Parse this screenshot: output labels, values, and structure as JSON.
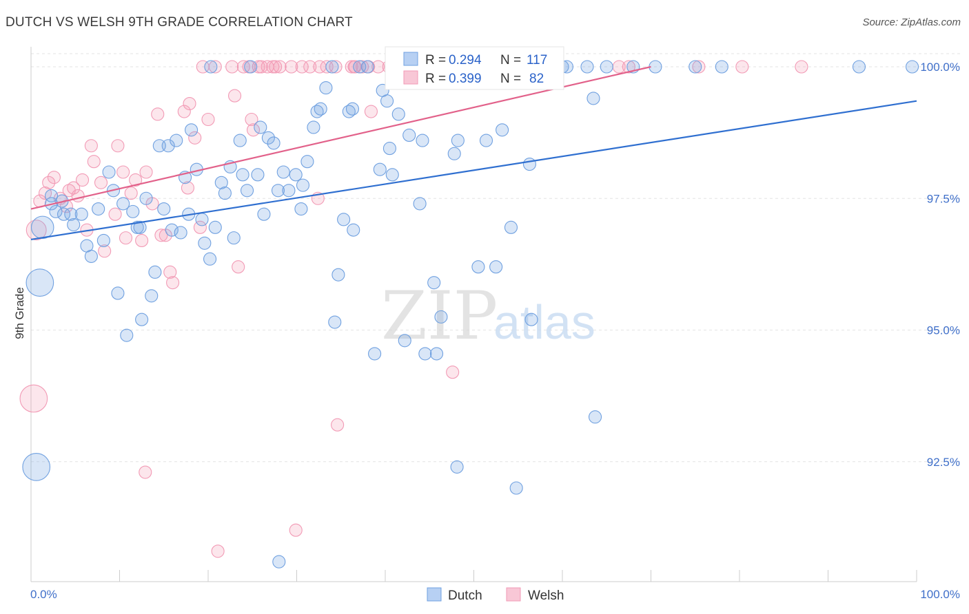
{
  "title": "DUTCH VS WELSH 9TH GRADE CORRELATION CHART",
  "source": "Source: ZipAtlas.com",
  "watermark": {
    "zip": "ZIP",
    "atlas": "atlas"
  },
  "legend": {
    "r_label": "R =",
    "n_label": "N =",
    "dutch": {
      "r": "0.294",
      "n": "117"
    },
    "welsh": {
      "r": "0.399",
      "n": "82"
    }
  },
  "chart_data": {
    "type": "scatter",
    "title": "DUTCH VS WELSH 9TH GRADE CORRELATION CHART",
    "xlabel": "",
    "ylabel": "9th Grade",
    "xlim": [
      0,
      100
    ],
    "ylim": [
      90.0,
      100.3
    ],
    "x_tick_labels": [
      "0.0%",
      "100.0%"
    ],
    "y_ticks": [
      {
        "value": 100.0,
        "label": "100.0%"
      },
      {
        "value": 97.5,
        "label": "97.5%"
      },
      {
        "value": 95.0,
        "label": "95.0%"
      },
      {
        "value": 92.5,
        "label": "92.5%"
      }
    ],
    "grid": true,
    "legend_position": "top-center",
    "colors": {
      "dutch": "#6fa0e0",
      "welsh": "#f29ab5",
      "dutch_line": "#2f6fd0",
      "welsh_line": "#e2618a"
    },
    "series": [
      {
        "name": "Dutch",
        "trend": {
          "x0": 0,
          "y0": 96.72,
          "x1": 100,
          "y1": 99.35
        },
        "points": [
          [
            1.3,
            96.95,
            1.8
          ],
          [
            1.0,
            95.9,
            2.2
          ],
          [
            0.6,
            92.4,
            2.2
          ],
          [
            2.3,
            97.4,
            1
          ],
          [
            2.3,
            97.55,
            1
          ],
          [
            2.8,
            97.25,
            1
          ],
          [
            3.5,
            97.45,
            1
          ],
          [
            3.7,
            97.2,
            1
          ],
          [
            4.5,
            97.2,
            1
          ],
          [
            4.8,
            97.0,
            1
          ],
          [
            5.7,
            97.2,
            1
          ],
          [
            6.3,
            96.6,
            1
          ],
          [
            6.8,
            96.4,
            1
          ],
          [
            7.6,
            97.3,
            1
          ],
          [
            8.2,
            96.7,
            1
          ],
          [
            8.8,
            98.0,
            1
          ],
          [
            9.3,
            97.65,
            1
          ],
          [
            9.8,
            95.7,
            1
          ],
          [
            10.4,
            97.4,
            1
          ],
          [
            10.8,
            94.9,
            1
          ],
          [
            11.5,
            97.25,
            1
          ],
          [
            12.0,
            96.95,
            1
          ],
          [
            12.3,
            96.95,
            1
          ],
          [
            12.5,
            95.2,
            1
          ],
          [
            13.0,
            97.5,
            1
          ],
          [
            13.6,
            95.65,
            1
          ],
          [
            14.0,
            96.1,
            1
          ],
          [
            14.5,
            98.5,
            1
          ],
          [
            15.0,
            97.3,
            1
          ],
          [
            15.5,
            98.5,
            1
          ],
          [
            15.9,
            96.9,
            1
          ],
          [
            16.4,
            98.6,
            1
          ],
          [
            16.9,
            96.85,
            1
          ],
          [
            17.4,
            97.9,
            1
          ],
          [
            17.8,
            97.2,
            1
          ],
          [
            18.1,
            98.8,
            1
          ],
          [
            18.7,
            98.05,
            1
          ],
          [
            19.3,
            97.1,
            1
          ],
          [
            19.6,
            96.65,
            1
          ],
          [
            20.2,
            96.35,
            1
          ],
          [
            20.8,
            96.95,
            1
          ],
          [
            21.5,
            97.8,
            1
          ],
          [
            21.9,
            97.6,
            1
          ],
          [
            22.5,
            98.1,
            1
          ],
          [
            22.9,
            96.75,
            1
          ],
          [
            23.6,
            98.6,
            1
          ],
          [
            23.9,
            97.95,
            1
          ],
          [
            24.4,
            97.65,
            1
          ],
          [
            24.8,
            100.0,
            1
          ],
          [
            25.6,
            97.95,
            1
          ],
          [
            25.9,
            98.85,
            1
          ],
          [
            26.3,
            97.2,
            1
          ],
          [
            26.8,
            98.65,
            1
          ],
          [
            27.4,
            98.55,
            1
          ],
          [
            27.9,
            97.65,
            1
          ],
          [
            28.5,
            98.0,
            1
          ],
          [
            29.1,
            97.65,
            1
          ],
          [
            29.9,
            97.95,
            1
          ],
          [
            30.5,
            97.3,
            1
          ],
          [
            30.7,
            97.75,
            1
          ],
          [
            31.2,
            98.2,
            1
          ],
          [
            31.9,
            98.85,
            1
          ],
          [
            32.3,
            99.15,
            1
          ],
          [
            32.7,
            99.2,
            1
          ],
          [
            33.3,
            99.6,
            1
          ],
          [
            34.3,
            95.15,
            1
          ],
          [
            34.7,
            96.05,
            1
          ],
          [
            35.3,
            97.1,
            1
          ],
          [
            35.9,
            99.15,
            1
          ],
          [
            36.3,
            99.2,
            1
          ],
          [
            36.4,
            96.9,
            1
          ],
          [
            37.1,
            100.0,
            1
          ],
          [
            38.0,
            100.0,
            1
          ],
          [
            38.8,
            94.55,
            1
          ],
          [
            39.4,
            98.05,
            1
          ],
          [
            39.7,
            99.55,
            1
          ],
          [
            40.2,
            99.35,
            1
          ],
          [
            40.5,
            98.45,
            1
          ],
          [
            40.8,
            97.95,
            1
          ],
          [
            41.5,
            99.1,
            1
          ],
          [
            42.2,
            94.8,
            1
          ],
          [
            42.7,
            98.7,
            1
          ],
          [
            43.9,
            97.4,
            1
          ],
          [
            44.2,
            98.6,
            1
          ],
          [
            44.5,
            94.55,
            1
          ],
          [
            45.5,
            95.9,
            1
          ],
          [
            45.8,
            94.55,
            1
          ],
          [
            46.3,
            95.25,
            1
          ],
          [
            46.6,
            100.0,
            1
          ],
          [
            47.8,
            98.35,
            1
          ],
          [
            48.2,
            98.6,
            1
          ],
          [
            50.5,
            96.2,
            1
          ],
          [
            51.4,
            98.6,
            1
          ],
          [
            52.5,
            96.2,
            1
          ],
          [
            53.0,
            100.0,
            1
          ],
          [
            53.2,
            98.8,
            1
          ],
          [
            54.0,
            100.0,
            1
          ],
          [
            54.2,
            96.95,
            1
          ],
          [
            55.4,
            100.0,
            1
          ],
          [
            56.3,
            98.15,
            1
          ],
          [
            56.5,
            95.2,
            1
          ],
          [
            60.0,
            100.0,
            1
          ],
          [
            60.5,
            100.0,
            1
          ],
          [
            62.8,
            100.0,
            1
          ],
          [
            63.5,
            99.4,
            1
          ],
          [
            63.7,
            93.35,
            1
          ],
          [
            65.0,
            100.0,
            1
          ],
          [
            68.0,
            100.0,
            1
          ],
          [
            70.5,
            100.0,
            1
          ],
          [
            75.0,
            100.0,
            1
          ],
          [
            78.0,
            100.0,
            1
          ],
          [
            93.5,
            100.0,
            1
          ],
          [
            99.5,
            100.0,
            1
          ],
          [
            34.0,
            100.0,
            1
          ],
          [
            28.0,
            90.6,
            1
          ],
          [
            48.1,
            92.4,
            1
          ],
          [
            54.8,
            92.0,
            1
          ],
          [
            20.3,
            100.0,
            1
          ],
          [
            44.0,
            100.0,
            1
          ],
          [
            49.4,
            100.0,
            1
          ]
        ]
      },
      {
        "name": "Welsh",
        "trend": {
          "x0": 0,
          "y0": 97.3,
          "x1": 70,
          "y1": 100.0
        },
        "points": [
          [
            0.3,
            93.7,
            2.2
          ],
          [
            0.6,
            96.9,
            1.6
          ],
          [
            1.0,
            97.45,
            1
          ],
          [
            1.6,
            97.6,
            1
          ],
          [
            2.0,
            97.8,
            1
          ],
          [
            2.6,
            97.9,
            1
          ],
          [
            3.3,
            97.5,
            1
          ],
          [
            4.0,
            97.35,
            1
          ],
          [
            4.3,
            97.65,
            1
          ],
          [
            4.8,
            97.7,
            1
          ],
          [
            5.3,
            97.55,
            1
          ],
          [
            5.8,
            97.85,
            1
          ],
          [
            6.3,
            96.9,
            1
          ],
          [
            6.8,
            98.5,
            1
          ],
          [
            7.1,
            98.2,
            1
          ],
          [
            7.9,
            97.8,
            1
          ],
          [
            8.3,
            96.5,
            1
          ],
          [
            9.5,
            97.2,
            1
          ],
          [
            9.8,
            98.5,
            1
          ],
          [
            10.4,
            98.0,
            1
          ],
          [
            10.7,
            96.75,
            1
          ],
          [
            11.3,
            97.6,
            1
          ],
          [
            11.8,
            97.85,
            1
          ],
          [
            12.5,
            96.7,
            1
          ],
          [
            13.0,
            98.0,
            1
          ],
          [
            13.7,
            97.4,
            1
          ],
          [
            14.3,
            99.1,
            1
          ],
          [
            14.7,
            96.8,
            1
          ],
          [
            15.2,
            96.8,
            1
          ],
          [
            15.7,
            96.1,
            1
          ],
          [
            16.0,
            95.9,
            1
          ],
          [
            17.3,
            99.15,
            1
          ],
          [
            17.7,
            97.7,
            1
          ],
          [
            17.9,
            99.3,
            1
          ],
          [
            18.5,
            98.65,
            1
          ],
          [
            19.1,
            96.95,
            1
          ],
          [
            19.4,
            100.0,
            1
          ],
          [
            20.0,
            99.0,
            1
          ],
          [
            20.8,
            100.0,
            1
          ],
          [
            21.1,
            90.8,
            1
          ],
          [
            22.7,
            100.0,
            1
          ],
          [
            23.0,
            99.45,
            1
          ],
          [
            23.4,
            96.2,
            1
          ],
          [
            24.0,
            100.0,
            1
          ],
          [
            24.6,
            100.0,
            1
          ],
          [
            24.9,
            99.0,
            1
          ],
          [
            25.1,
            98.8,
            1
          ],
          [
            25.7,
            100.0,
            1
          ],
          [
            26.7,
            100.0,
            1
          ],
          [
            27.3,
            100.0,
            1
          ],
          [
            27.6,
            100.0,
            1
          ],
          [
            28.1,
            100.0,
            1
          ],
          [
            29.4,
            100.0,
            1
          ],
          [
            29.9,
            91.2,
            1
          ],
          [
            30.6,
            100.0,
            1
          ],
          [
            31.5,
            100.0,
            1
          ],
          [
            32.4,
            97.5,
            1
          ],
          [
            32.6,
            100.0,
            1
          ],
          [
            33.4,
            100.0,
            1
          ],
          [
            34.4,
            100.0,
            1
          ],
          [
            34.6,
            93.2,
            1
          ],
          [
            36.2,
            100.0,
            1
          ],
          [
            36.5,
            100.0,
            1
          ],
          [
            36.6,
            100.0,
            1
          ],
          [
            37.4,
            100.0,
            1
          ],
          [
            38.1,
            100.0,
            1
          ],
          [
            38.4,
            99.15,
            1
          ],
          [
            39.2,
            100.0,
            1
          ],
          [
            40.4,
            100.0,
            1
          ],
          [
            42.7,
            100.0,
            1
          ],
          [
            43.2,
            100.0,
            1
          ],
          [
            45.6,
            100.0,
            1
          ],
          [
            47.6,
            94.2,
            1
          ],
          [
            53.1,
            100.0,
            1
          ],
          [
            56.6,
            100.0,
            1
          ],
          [
            66.4,
            100.0,
            1
          ],
          [
            67.5,
            100.0,
            1
          ],
          [
            75.4,
            100.0,
            1
          ],
          [
            80.3,
            100.0,
            1
          ],
          [
            87.0,
            100.0,
            1
          ],
          [
            12.9,
            92.3,
            1
          ],
          [
            26.0,
            100.0,
            1
          ]
        ]
      }
    ]
  },
  "bottom_legend": {
    "dutch": "Dutch",
    "welsh": "Welsh"
  }
}
